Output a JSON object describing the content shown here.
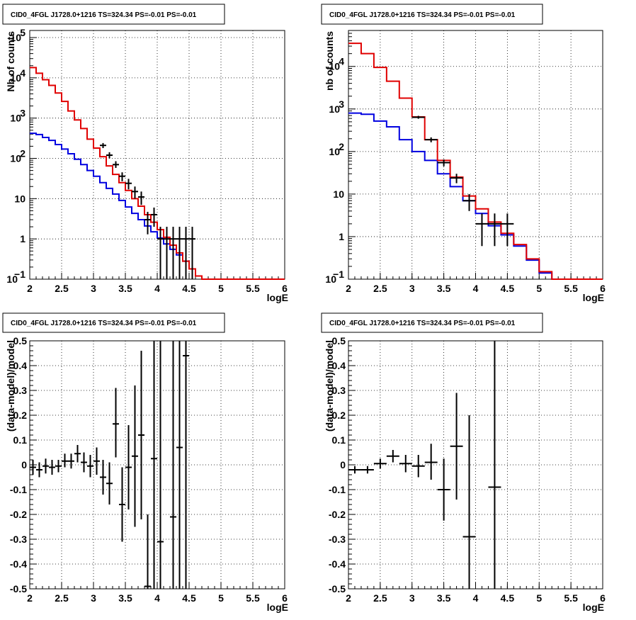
{
  "colors": {
    "model": "#e00000",
    "bkg": "#0000e0",
    "data": "#000000",
    "grid": "#000000"
  },
  "chart_data": [
    {
      "type": "line",
      "title": "CID0_4FGL J1728.0+1216 TS=324.34 PS=-0.01 PS=-0.01",
      "xlabel": "logE",
      "ylabel": "Nb of counts",
      "xlim": [
        2,
        6
      ],
      "ylim": [
        0.1,
        150000
      ],
      "yscale": "log",
      "grid": true,
      "xticks": [
        "2",
        "2.5",
        "3",
        "3.5",
        "4",
        "4.5",
        "5",
        "5.5",
        "6"
      ],
      "yticks": [
        {
          "v": 0.1,
          "m": "10",
          "e": "−1"
        },
        {
          "v": 1,
          "m": "1",
          "e": ""
        },
        {
          "v": 10,
          "m": "10",
          "e": ""
        },
        {
          "v": 100,
          "m": "10",
          "e": "2"
        },
        {
          "v": 1000,
          "m": "10",
          "e": "3"
        },
        {
          "v": 10000,
          "m": "10",
          "e": "4"
        },
        {
          "v": 100000,
          "m": "10",
          "e": "5"
        }
      ],
      "bin_edges": [
        2,
        2.1,
        2.2,
        2.3,
        2.4,
        2.5,
        2.6,
        2.7,
        2.8,
        2.9,
        3,
        3.1,
        3.2,
        3.3,
        3.4,
        3.5,
        3.6,
        3.7,
        3.8,
        3.9,
        4,
        4.1,
        4.2,
        4.3,
        4.4,
        4.5,
        4.6,
        4.7,
        4.8,
        4.9,
        5,
        5.1,
        5.2,
        5.3,
        5.4,
        5.5,
        5.6,
        5.7,
        5.8,
        5.9,
        6
      ],
      "series": [
        {
          "role": "model",
          "values": [
            18000,
            13000,
            9000,
            6500,
            4200,
            2600,
            1500,
            900,
            550,
            300,
            180,
            110,
            65,
            40,
            25,
            16,
            10,
            6.5,
            4,
            2.6,
            1.7,
            1.1,
            0.7,
            0.45,
            0.28,
            0.18,
            0.12,
            0.1,
            0.1,
            0.1,
            0.1,
            0.1,
            0.1,
            0.1,
            0.1,
            0.1,
            0.1,
            0.1,
            0.1,
            0.1
          ]
        },
        {
          "role": "bkg",
          "values": [
            420,
            390,
            330,
            280,
            220,
            170,
            130,
            95,
            70,
            50,
            36,
            25,
            18,
            13,
            9,
            6.2,
            4.3,
            3,
            2.1,
            1.5,
            1.05,
            0.75,
            0.55,
            0.4,
            0.28,
            0.18,
            0.12,
            0.1,
            0.1,
            0.1,
            0.1,
            0.1,
            0.1,
            0.1,
            0.1,
            0.1,
            0.1,
            0.1,
            0.1,
            0.1
          ]
        },
        {
          "role": "data",
          "points": [
            {
              "x": 3.15,
              "y": 210,
              "lo": 180,
              "hi": 240
            },
            {
              "x": 3.25,
              "y": 120,
              "lo": 100,
              "hi": 142
            },
            {
              "x": 3.35,
              "y": 70,
              "lo": 58,
              "hi": 85
            },
            {
              "x": 3.45,
              "y": 36,
              "lo": 27,
              "hi": 45
            },
            {
              "x": 3.55,
              "y": 24,
              "lo": 17,
              "hi": 31
            },
            {
              "x": 3.65,
              "y": 15,
              "lo": 10,
              "hi": 20
            },
            {
              "x": 3.75,
              "y": 11,
              "lo": 7,
              "hi": 15
            },
            {
              "x": 3.85,
              "y": 3,
              "lo": 1.3,
              "hi": 4.7
            },
            {
              "x": 3.95,
              "y": 4,
              "lo": 2,
              "hi": 6
            },
            {
              "x": 4.05,
              "y": 1,
              "lo": 0.1,
              "hi": 2
            },
            {
              "x": 4.15,
              "y": 1,
              "lo": 0.1,
              "hi": 2
            },
            {
              "x": 4.25,
              "y": 1,
              "lo": 0.1,
              "hi": 2
            },
            {
              "x": 4.35,
              "y": 1,
              "lo": 0.1,
              "hi": 2
            },
            {
              "x": 4.45,
              "y": 1,
              "lo": 0.1,
              "hi": 2
            },
            {
              "x": 4.55,
              "y": 1,
              "lo": 0.1,
              "hi": 2
            }
          ],
          "xerr": 0.05
        }
      ]
    },
    {
      "type": "line",
      "title": "CID0_4FGL J1728.0+1216 TS=324.34 PS=-0.01 PS=-0.01",
      "xlabel": "logE",
      "ylabel": "nb of counts",
      "xlim": [
        2,
        6
      ],
      "ylim": [
        0.1,
        70000
      ],
      "yscale": "log",
      "grid": true,
      "xticks": [
        "2",
        "2.5",
        "3",
        "3.5",
        "4",
        "4.5",
        "5",
        "5.5",
        "6"
      ],
      "yticks": [
        {
          "v": 0.1,
          "m": "10",
          "e": "−1"
        },
        {
          "v": 1,
          "m": "1",
          "e": ""
        },
        {
          "v": 10,
          "m": "10",
          "e": ""
        },
        {
          "v": 100,
          "m": "10",
          "e": "2"
        },
        {
          "v": 1000,
          "m": "10",
          "e": "3"
        },
        {
          "v": 10000,
          "m": "10",
          "e": "4"
        }
      ],
      "bin_edges": [
        2,
        2.2,
        2.4,
        2.6,
        2.8,
        3,
        3.2,
        3.4,
        3.6,
        3.8,
        4,
        4.2,
        4.4,
        4.6,
        4.8,
        5,
        5.2,
        5.4,
        5.6,
        5.8,
        6
      ],
      "series": [
        {
          "role": "model",
          "values": [
            35000,
            20000,
            9500,
            4500,
            1800,
            650,
            190,
            62,
            25,
            9,
            4.5,
            2.2,
            1.2,
            0.65,
            0.3,
            0.15,
            0.1,
            0.1,
            0.1,
            0.1
          ]
        },
        {
          "role": "bkg",
          "values": [
            800,
            750,
            520,
            380,
            190,
            100,
            62,
            30,
            15,
            7,
            3.5,
            1.8,
            1.1,
            0.6,
            0.28,
            0.14,
            0.1,
            0.1,
            0.1,
            0.1
          ]
        },
        {
          "role": "data",
          "points": [
            {
              "x": 3.1,
              "y": 640,
              "lo": 590,
              "hi": 690
            },
            {
              "x": 3.3,
              "y": 190,
              "lo": 165,
              "hi": 215
            },
            {
              "x": 3.5,
              "y": 55,
              "lo": 45,
              "hi": 65
            },
            {
              "x": 3.7,
              "y": 24,
              "lo": 18,
              "hi": 30
            },
            {
              "x": 3.9,
              "y": 7,
              "lo": 4,
              "hi": 10
            },
            {
              "x": 4.1,
              "y": 2,
              "lo": 0.6,
              "hi": 3.5
            },
            {
              "x": 4.3,
              "y": 2,
              "lo": 0.6,
              "hi": 3.5
            },
            {
              "x": 4.5,
              "y": 2,
              "lo": 0.6,
              "hi": 3.5
            }
          ],
          "xerr": 0.1
        }
      ]
    },
    {
      "type": "scatter",
      "title": "CID0_4FGL J1728.0+1216 TS=324.34 PS=-0.01 PS=-0.01",
      "xlabel": "logE",
      "ylabel": "(data-model)/model",
      "xlim": [
        2,
        6
      ],
      "ylim": [
        -0.5,
        0.5
      ],
      "grid": true,
      "xticks": [
        "2",
        "2.5",
        "3",
        "3.5",
        "4",
        "4.5",
        "5",
        "5.5",
        "6"
      ],
      "yticks": [
        "-0.5",
        "-0.4",
        "-0.3",
        "-0.2",
        "-0.1",
        "0",
        "0.1",
        "0.2",
        "0.3",
        "0.4",
        "0.5"
      ],
      "xerr": 0.05,
      "points": [
        {
          "x": 2.05,
          "y": -0.01,
          "lo": -0.04,
          "hi": 0.02
        },
        {
          "x": 2.15,
          "y": -0.02,
          "lo": -0.05,
          "hi": 0.01
        },
        {
          "x": 2.25,
          "y": -0.005,
          "lo": -0.035,
          "hi": 0.025
        },
        {
          "x": 2.35,
          "y": -0.01,
          "lo": -0.04,
          "hi": 0.02
        },
        {
          "x": 2.45,
          "y": -0.005,
          "lo": -0.03,
          "hi": 0.02
        },
        {
          "x": 2.55,
          "y": 0.015,
          "lo": -0.01,
          "hi": 0.045
        },
        {
          "x": 2.65,
          "y": 0.015,
          "lo": -0.015,
          "hi": 0.045
        },
        {
          "x": 2.75,
          "y": 0.045,
          "lo": 0.01,
          "hi": 0.08
        },
        {
          "x": 2.85,
          "y": 0.01,
          "lo": -0.03,
          "hi": 0.05
        },
        {
          "x": 2.95,
          "y": -0.005,
          "lo": -0.05,
          "hi": 0.04
        },
        {
          "x": 3.05,
          "y": 0.015,
          "lo": -0.04,
          "hi": 0.07
        },
        {
          "x": 3.15,
          "y": -0.05,
          "lo": -0.12,
          "hi": 0.02
        },
        {
          "x": 3.25,
          "y": -0.075,
          "lo": -0.16,
          "hi": 0.01
        },
        {
          "x": 3.35,
          "y": 0.165,
          "lo": 0.03,
          "hi": 0.31
        },
        {
          "x": 3.45,
          "y": -0.16,
          "lo": -0.31,
          "hi": -0.01
        },
        {
          "x": 3.55,
          "y": -0.01,
          "lo": -0.18,
          "hi": 0.16
        },
        {
          "x": 3.65,
          "y": 0.035,
          "lo": -0.25,
          "hi": 0.32
        },
        {
          "x": 3.75,
          "y": 0.12,
          "lo": -0.22,
          "hi": 0.46
        },
        {
          "x": 3.85,
          "y": -0.49,
          "lo": -0.5,
          "hi": -0.2
        },
        {
          "x": 3.95,
          "y": 0.025,
          "lo": -0.5,
          "hi": 0.5
        },
        {
          "x": 4.05,
          "y": -0.31,
          "lo": -0.5,
          "hi": 0.5
        },
        {
          "x": 4.25,
          "y": -0.21,
          "lo": -0.5,
          "hi": 0.5
        },
        {
          "x": 4.35,
          "y": 0.07,
          "lo": -0.5,
          "hi": 0.5
        },
        {
          "x": 4.45,
          "y": 0.44,
          "lo": -0.5,
          "hi": 0.5
        }
      ]
    },
    {
      "type": "scatter",
      "title": "CID0_4FGL J1728.0+1216 TS=324.34 PS=-0.01 PS=-0.01",
      "xlabel": "logE",
      "ylabel": "(data-model)/model",
      "xlim": [
        2,
        6
      ],
      "ylim": [
        -0.5,
        0.5
      ],
      "grid": true,
      "xticks": [
        "2",
        "2.5",
        "3",
        "3.5",
        "4",
        "4.5",
        "5",
        "5.5",
        "6"
      ],
      "yticks": [
        "-0.5",
        "-0.4",
        "-0.3",
        "-0.2",
        "-0.1",
        "0",
        "0.1",
        "0.2",
        "0.3",
        "0.4",
        "0.5"
      ],
      "xerr": 0.1,
      "points": [
        {
          "x": 2.1,
          "y": -0.02,
          "lo": -0.035,
          "hi": -0.005
        },
        {
          "x": 2.3,
          "y": -0.02,
          "lo": -0.035,
          "hi": -0.005
        },
        {
          "x": 2.5,
          "y": 0.005,
          "lo": -0.015,
          "hi": 0.025
        },
        {
          "x": 2.7,
          "y": 0.035,
          "lo": 0.01,
          "hi": 0.06
        },
        {
          "x": 2.9,
          "y": 0.005,
          "lo": -0.03,
          "hi": 0.04
        },
        {
          "x": 3.1,
          "y": -0.005,
          "lo": -0.05,
          "hi": 0.04
        },
        {
          "x": 3.3,
          "y": 0.01,
          "lo": -0.06,
          "hi": 0.085
        },
        {
          "x": 3.5,
          "y": -0.1,
          "lo": -0.225,
          "hi": 0.025
        },
        {
          "x": 3.7,
          "y": 0.075,
          "lo": -0.14,
          "hi": 0.29
        },
        {
          "x": 3.9,
          "y": -0.29,
          "lo": -0.5,
          "hi": 0.2
        },
        {
          "x": 4.3,
          "y": -0.09,
          "lo": -0.5,
          "hi": 0.5
        }
      ]
    }
  ]
}
